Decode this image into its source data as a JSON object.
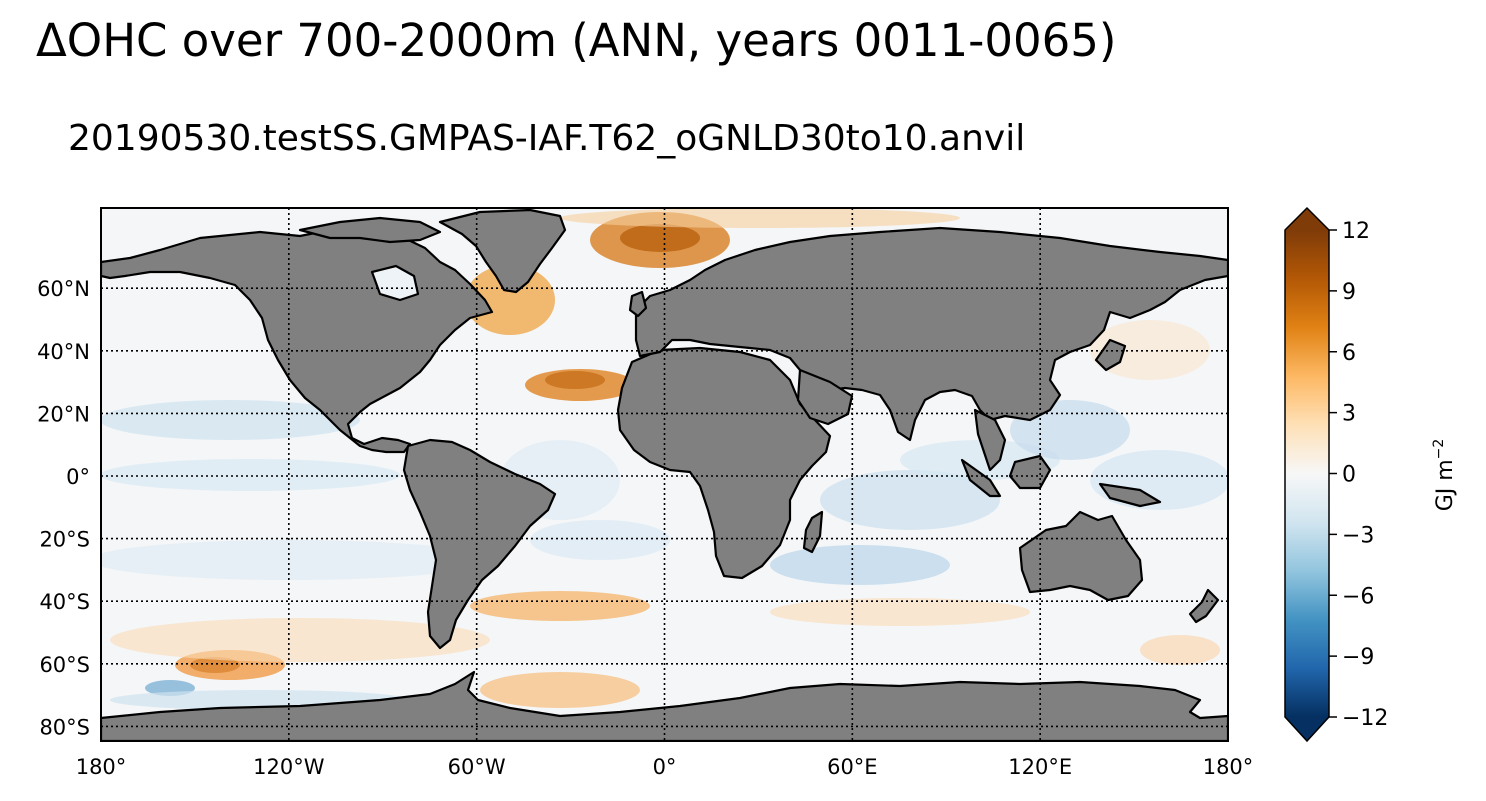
{
  "title": "ΔOHC over 700-2000m (ANN, years 0011-0065)",
  "subtitle": "20190530.testSS.GMPAS-IAF.T62_oGNLD30to10.anvil",
  "map": {
    "projection": "plate-carree",
    "land_color": "#808080",
    "coastline_color": "#000000",
    "gridlines": "dotted",
    "lon_ticks": [
      {
        "value": -180,
        "label": "180°"
      },
      {
        "value": -120,
        "label": "120°W"
      },
      {
        "value": -60,
        "label": "60°W"
      },
      {
        "value": 0,
        "label": "0°"
      },
      {
        "value": 60,
        "label": "60°E"
      },
      {
        "value": 120,
        "label": "120°E"
      },
      {
        "value": 180,
        "label": "180°"
      }
    ],
    "lat_ticks": [
      {
        "value": 60,
        "label": "60°N"
      },
      {
        "value": 40,
        "label": "40°N"
      },
      {
        "value": 20,
        "label": "20°N"
      },
      {
        "value": 0,
        "label": "0°"
      },
      {
        "value": -20,
        "label": "20°S"
      },
      {
        "value": -40,
        "label": "40°S"
      },
      {
        "value": -60,
        "label": "60°S"
      },
      {
        "value": -80,
        "label": "80°S"
      }
    ]
  },
  "colorbar": {
    "label_text": "GJ m",
    "label_exponent": "−2",
    "range": [
      -12,
      12
    ],
    "extend": "both",
    "ticks": [
      {
        "value": 12,
        "label": "12"
      },
      {
        "value": 9,
        "label": "9"
      },
      {
        "value": 6,
        "label": "6"
      },
      {
        "value": 3,
        "label": "3"
      },
      {
        "value": 0,
        "label": "0"
      },
      {
        "value": -3,
        "label": "−3"
      },
      {
        "value": -6,
        "label": "−6"
      },
      {
        "value": -9,
        "label": "−9"
      },
      {
        "value": -12,
        "label": "−12"
      }
    ],
    "colors_high_to_low": [
      "#7f3b08",
      "#b35806",
      "#e08214",
      "#fdb863",
      "#fee0b6",
      "#f7f7f7",
      "#d1e5f0",
      "#92c5de",
      "#4393c3",
      "#2166ac",
      "#053061"
    ]
  }
}
